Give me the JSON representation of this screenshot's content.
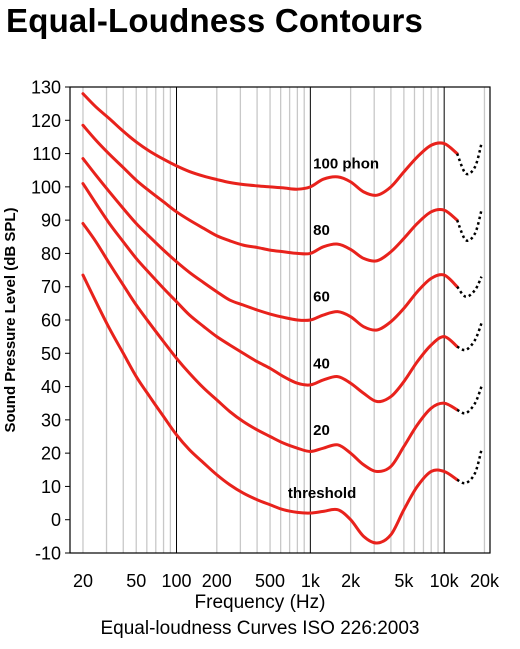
{
  "chart_data": {
    "type": "line",
    "title": "Equal-Loudness Contours",
    "subtitle": "Equal-loudness Curves ISO 226:2003",
    "xlabel": "Frequency (Hz)",
    "ylabel": "Sound Pressure Level (dB SPL)",
    "x_scale": "log",
    "xlim": [
      16,
      22000
    ],
    "ylim": [
      -10,
      130
    ],
    "x_ticks": [
      20,
      50,
      100,
      200,
      500,
      1000,
      2000,
      5000,
      10000,
      20000
    ],
    "x_tick_labels": [
      "20",
      "50",
      "100",
      "200",
      "500",
      "1k",
      "2k",
      "5k",
      "10k",
      "20k"
    ],
    "y_ticks": [
      -10,
      0,
      10,
      20,
      30,
      40,
      50,
      60,
      70,
      80,
      90,
      100,
      110,
      120,
      130
    ],
    "grid": "vertical",
    "colors": {
      "curve": "#e8221c",
      "extension": "#000000",
      "grid_minor": "#c8c8c8",
      "grid_major": "#000000"
    },
    "series": [
      {
        "name": "100 phon",
        "label_at": [
          1050,
          105.5
        ],
        "x": [
          20,
          25,
          31.5,
          40,
          50,
          63,
          80,
          100,
          125,
          160,
          200,
          250,
          315,
          400,
          500,
          630,
          800,
          1000,
          1250,
          1600,
          2000,
          2500,
          3150,
          4000,
          5000,
          6300,
          8000,
          10000,
          12500
        ],
        "y": [
          128,
          124,
          120.5,
          116.7,
          113.5,
          110.7,
          108.3,
          106.3,
          104.6,
          103.2,
          102.2,
          101.3,
          100.7,
          100.3,
          100,
          99.7,
          99.3,
          100,
          102.3,
          103,
          101.5,
          98.5,
          97.5,
          100,
          104.5,
          109,
          112.5,
          113,
          110
        ]
      },
      {
        "name": "80",
        "label_at": [
          1050,
          85.5
        ],
        "x": [
          20,
          25,
          31.5,
          40,
          50,
          63,
          80,
          100,
          125,
          160,
          200,
          250,
          315,
          400,
          500,
          630,
          800,
          1000,
          1250,
          1600,
          2000,
          2500,
          3150,
          4000,
          5000,
          6300,
          8000,
          10000,
          12500
        ],
        "y": [
          118.5,
          114,
          109.8,
          105.8,
          102,
          98.7,
          95.5,
          92.5,
          90,
          87.5,
          85.3,
          83.8,
          82.5,
          81.8,
          81,
          80.5,
          80,
          80,
          82,
          82.8,
          81.2,
          78.5,
          77.8,
          80.5,
          84.5,
          89,
          92.5,
          93,
          90
        ]
      },
      {
        "name": "60",
        "label_at": [
          1050,
          65.5
        ],
        "x": [
          20,
          25,
          31.5,
          40,
          50,
          63,
          80,
          100,
          125,
          160,
          200,
          250,
          315,
          400,
          500,
          630,
          800,
          1000,
          1250,
          1600,
          2000,
          2500,
          3150,
          4000,
          5000,
          6300,
          8000,
          10000,
          12500
        ],
        "y": [
          108.5,
          103.5,
          98.5,
          93.5,
          89,
          85,
          81,
          77.5,
          74.3,
          71.2,
          68.5,
          66,
          64.5,
          63,
          61.8,
          60.8,
          60,
          60,
          61.5,
          62.5,
          61,
          58,
          57,
          59.5,
          63.5,
          68.5,
          72.5,
          73.5,
          70
        ]
      },
      {
        "name": "40",
        "label_at": [
          1050,
          45.5
        ],
        "x": [
          20,
          25,
          31.5,
          40,
          50,
          63,
          80,
          100,
          125,
          160,
          200,
          250,
          315,
          400,
          500,
          630,
          800,
          1000,
          1250,
          1600,
          2000,
          2500,
          3150,
          4000,
          5000,
          6300,
          8000,
          10000,
          12500
        ],
        "y": [
          101,
          95,
          89,
          83.5,
          78.5,
          74,
          69.5,
          65.5,
          61.5,
          58,
          55,
          52.5,
          50,
          47.5,
          45.5,
          43,
          41,
          40.5,
          42,
          43,
          41,
          38,
          35.5,
          37,
          41.5,
          47.5,
          52.5,
          55,
          52
        ]
      },
      {
        "name": "20",
        "label_at": [
          1050,
          25.5
        ],
        "x": [
          20,
          25,
          31.5,
          40,
          50,
          63,
          80,
          100,
          125,
          160,
          200,
          250,
          315,
          400,
          500,
          630,
          800,
          1000,
          1250,
          1600,
          2000,
          2500,
          3150,
          4000,
          5000,
          6300,
          8000,
          10000,
          12500
        ],
        "y": [
          89,
          83.5,
          77,
          70.5,
          64.5,
          59,
          53.5,
          48.5,
          44,
          39.5,
          36,
          32.5,
          29.5,
          27,
          25,
          23,
          21.5,
          20.5,
          21.5,
          22.5,
          20,
          16.5,
          14.5,
          16,
          22,
          28.5,
          33.5,
          35,
          33
        ]
      },
      {
        "name": "threshold",
        "label_at": [
          680,
          6.5
        ],
        "x": [
          20,
          25,
          31.5,
          40,
          50,
          63,
          80,
          100,
          125,
          160,
          200,
          250,
          315,
          400,
          500,
          630,
          800,
          1000,
          1250,
          1600,
          2000,
          2500,
          3150,
          4000,
          5000,
          6300,
          8000,
          10000,
          12500
        ],
        "y": [
          73.5,
          65.5,
          57.5,
          50,
          43,
          37,
          31,
          25.5,
          21,
          17,
          13.5,
          10.5,
          8,
          6,
          4.5,
          3,
          2.2,
          2,
          2.5,
          3,
          0,
          -5,
          -7,
          -4.5,
          3,
          10,
          14.5,
          14.5,
          12
        ]
      }
    ],
    "extensions": [
      {
        "x": [
          12500,
          14500,
          17000,
          19000
        ],
        "y": [
          110,
          104,
          106,
          113
        ]
      },
      {
        "x": [
          12500,
          14500,
          17000,
          19000
        ],
        "y": [
          90,
          84,
          86,
          93
        ]
      },
      {
        "x": [
          12500,
          14500,
          17000,
          19000
        ],
        "y": [
          70,
          67,
          69,
          73
        ]
      },
      {
        "x": [
          12500,
          14500,
          17000,
          19000
        ],
        "y": [
          52,
          51,
          54,
          59
        ]
      },
      {
        "x": [
          12500,
          14500,
          17000,
          19000
        ],
        "y": [
          33,
          32,
          35,
          40
        ]
      },
      {
        "x": [
          12500,
          14500,
          17000,
          19000
        ],
        "y": [
          12,
          11,
          14,
          21
        ]
      }
    ]
  }
}
